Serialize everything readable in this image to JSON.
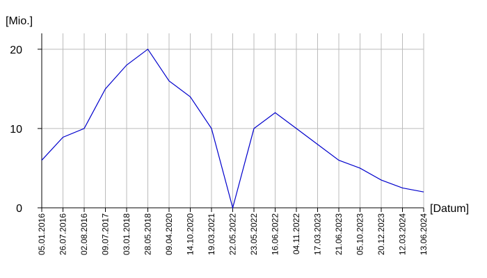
{
  "chart_data": {
    "type": "line",
    "y_label": "[Mio.]",
    "x_label": "[Datum]",
    "categories": [
      "05.01.2016",
      "26.07.2016",
      "02.08.2016",
      "09.07.2017",
      "03.01.2018",
      "28.05.2018",
      "09.04.2020",
      "14.10.2020",
      "19.03.2021",
      "22.05.2022",
      "23.05.2022",
      "16.06.2022",
      "04.11.2022",
      "17.03.2023",
      "21.06.2023",
      "05.10.2023",
      "20.12.2023",
      "12.03.2024",
      "13.06.2024"
    ],
    "values": [
      6,
      8.9,
      10,
      15,
      18,
      20,
      16,
      14,
      10,
      0,
      10,
      12,
      10,
      8,
      6,
      5,
      3.5,
      2.5,
      2
    ],
    "color": "#0000cc",
    "ylim": [
      0,
      22
    ],
    "yticks": [
      0,
      10,
      20
    ],
    "grid": true
  }
}
